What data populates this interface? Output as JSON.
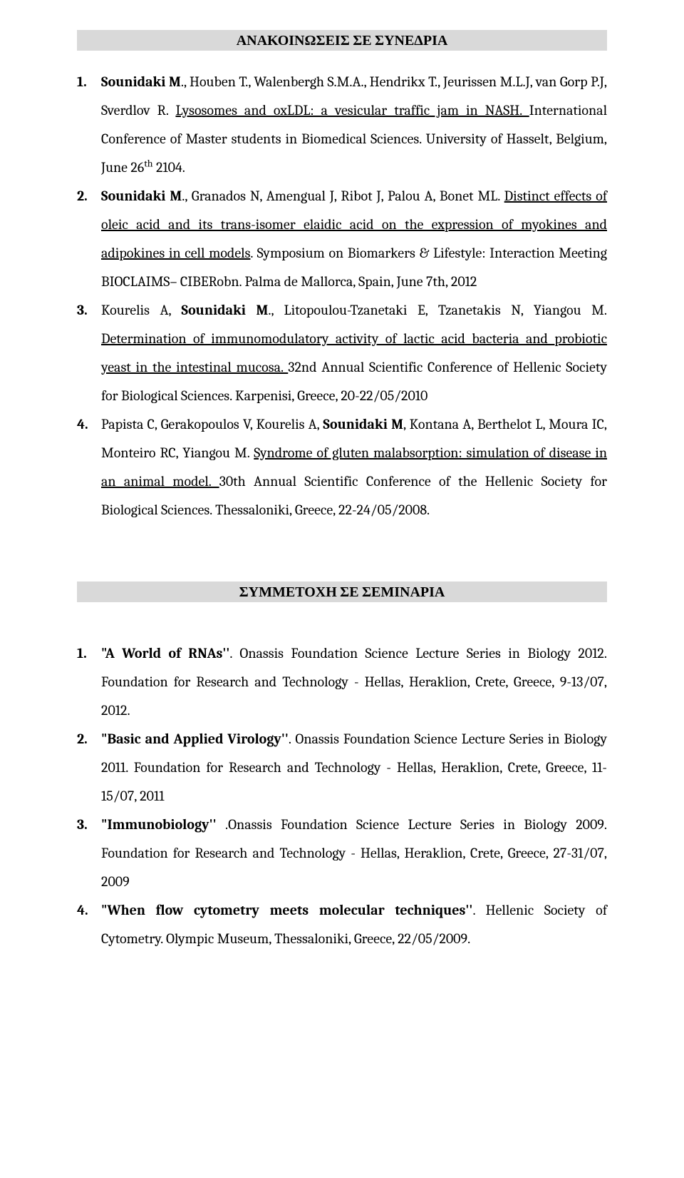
{
  "section1": {
    "heading": "ΑΝΑΚΟΙΝΩΣΕΙΣ ΣΕ ΣΥΝΕΔΡΙΑ",
    "items": [
      {
        "num": "1.",
        "seg": [
          {
            "t": "Sounidaki M",
            "b": true
          },
          {
            "t": "., Houben T., Walenbergh S.M.A., Hendrikx T., Jeurissen M.L.J, van Gorp P.J, Sverdlov R. "
          },
          {
            "t": "Lysosomes and oxLDL: a vesicular traffic jam in NASH. ",
            "u": true
          },
          {
            "t": "International Conference of Master students in Biomedical Sciences. University of Hasselt, Belgium, June 26"
          },
          {
            "t": "th",
            "sup": true
          },
          {
            "t": " 2104."
          }
        ]
      },
      {
        "num": "2.",
        "seg": [
          {
            "t": "Sounidaki M",
            "b": true
          },
          {
            "t": "., Granados N, Amengual J, Ribot J, Palou A, Bonet ML. "
          },
          {
            "t": "Distinct effects of oleic acid and its trans-isomer elaidic acid on the expression of myokines and adipokines in cell models",
            "u": true
          },
          {
            "t": ". Symposium on Biomarkers & Lifestyle: Interaction Meeting BIOCLAIMS– CIBERobn. Palma de Mallorca, Spain, June 7th, 2012"
          }
        ]
      },
      {
        "num": "3.",
        "seg": [
          {
            "t": "Kourelis A,  "
          },
          {
            "t": "Sounidaki M",
            "b": true
          },
          {
            "t": "., Litopoulou-Tzanetaki E, Tzanetakis N, Yiangou M. "
          },
          {
            "t": "Determination of immunomodulatory activity of lactic acid bacteria and probiotic yeast in the intestinal mucosa. ",
            "u": true
          },
          {
            "t": "32nd Annual Scientific Conference of Hellenic Society for Biological Sciences. Karpenisi, Greece, 20-22/05/2010"
          }
        ]
      },
      {
        "num": "4.",
        "seg": [
          {
            "t": "Papista C, Gerakopoulos V, Kourelis A, "
          },
          {
            "t": "Sounidaki M",
            "b": true
          },
          {
            "t": ", Kontana A, Berthelot L, Moura IC, Monteiro RC, Yiangou M. "
          },
          {
            "t": "Syndrome of gluten malabsorption: simulation of disease in an animal model. ",
            "u": true
          },
          {
            "t": "30th Annual Scientific Conference of the Hellenic Society for Biological Sciences. Thessaloniki, Greece, 22-24/05/2008."
          }
        ]
      }
    ]
  },
  "section2": {
    "heading": "ΣΥΜΜΕΤΟΧΗ ΣΕ ΣΕΜΙΝΑΡΙΑ",
    "items": [
      {
        "num": "1.",
        "seg": [
          {
            "t": "\"A World of RNAs''",
            "b": true
          },
          {
            "t": ".  Onassis Foundation Science Lecture Series in Biology 2012. Foundation for Research and Technology - Hellas, Heraklion, Crete, Greece, 9-13/07, 2012."
          }
        ]
      },
      {
        "num": "2.",
        "seg": [
          {
            "t": "\"Basic and Applied Virology''",
            "b": true
          },
          {
            "t": ". Onassis Foundation Science Lecture Series in Biology 2011. Foundation for Research and Technology - Hellas, Heraklion, Crete, Greece, 11-15/07, 2011"
          }
        ]
      },
      {
        "num": "3.",
        "seg": [
          {
            "t": "\"Immunobiology''",
            "b": true
          },
          {
            "t": " .Onassis Foundation Science Lecture Series in Biology 2009. Foundation for Research and Technology - Hellas, Heraklion, Crete, Greece, 27-31/07, 2009"
          }
        ]
      },
      {
        "num": "4.",
        "seg": [
          {
            "t": "\"When flow cytometry meets molecular techniques''",
            "b": true
          },
          {
            "t": ". Hellenic Society of Cytometry. Olympic Museum, Thessaloniki, Greece, 22/05/2009."
          }
        ]
      }
    ]
  }
}
